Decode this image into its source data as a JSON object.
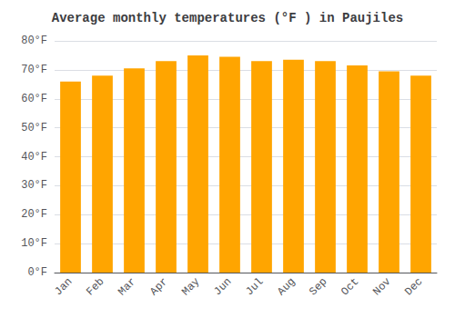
{
  "chart_data": {
    "type": "bar",
    "title": "Average monthly temperatures (°F ) in Paujiles",
    "categories": [
      "Jan",
      "Feb",
      "Mar",
      "Apr",
      "May",
      "Jun",
      "Jul",
      "Aug",
      "Sep",
      "Oct",
      "Nov",
      "Dec"
    ],
    "values": [
      66,
      68,
      70.5,
      73,
      75,
      74.5,
      73,
      73.5,
      73,
      71.5,
      69.5,
      68
    ],
    "color": "#FFA500",
    "ylim": [
      0,
      80
    ],
    "yticks": [
      {
        "value": 0,
        "label": "0°F"
      },
      {
        "value": 10,
        "label": "10°F"
      },
      {
        "value": 20,
        "label": "20°F"
      },
      {
        "value": 30,
        "label": "30°F"
      },
      {
        "value": 40,
        "label": "40°F"
      },
      {
        "value": 50,
        "label": "50°F"
      },
      {
        "value": 60,
        "label": "60°F"
      },
      {
        "value": 70,
        "label": "70°F"
      },
      {
        "value": 80,
        "label": "80°F"
      }
    ],
    "grid": true
  }
}
